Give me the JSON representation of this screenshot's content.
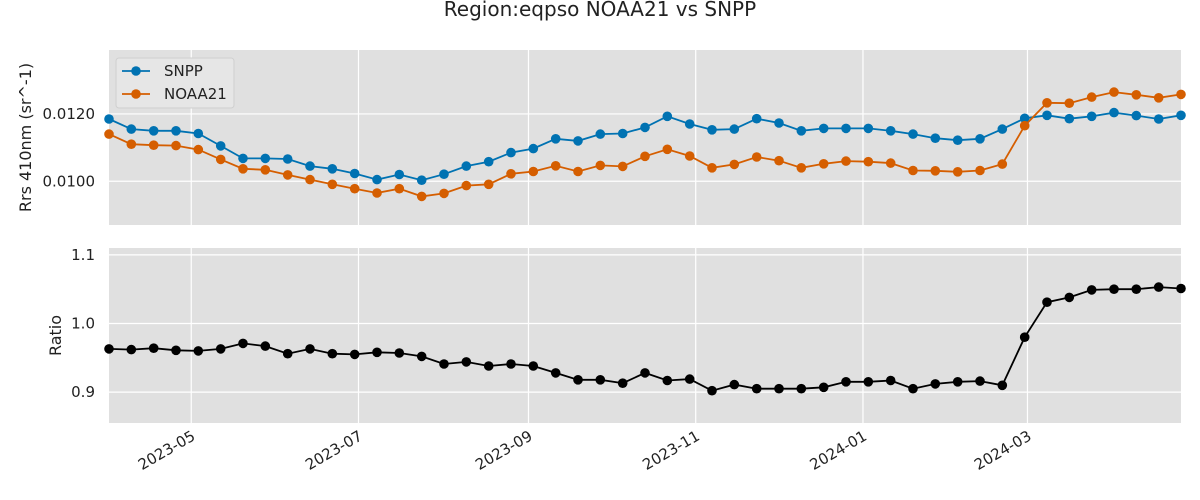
{
  "title": "Region:eqpso NOAA21 vs SNPP",
  "chart_data": [
    {
      "type": "line",
      "panel": "top",
      "ylabel": "Rrs 410nm (sr^-1)",
      "ylim": [
        0.0087,
        0.0139
      ],
      "yticks": [
        0.01,
        0.012
      ],
      "ytick_labels": [
        "0.0100",
        "0.0120"
      ],
      "grid": true,
      "legend": "top-left",
      "series": [
        {
          "name": "SNPP",
          "color": "#0072B2",
          "values": [
            0.01185,
            0.01155,
            0.0115,
            0.0115,
            0.01142,
            0.01105,
            0.01068,
            0.01068,
            0.01066,
            0.01045,
            0.01037,
            0.01023,
            0.01005,
            0.0102,
            0.01003,
            0.01021,
            0.01045,
            0.01058,
            0.01085,
            0.01097,
            0.01126,
            0.0112,
            0.0114,
            0.01142,
            0.0116,
            0.01193,
            0.0117,
            0.01153,
            0.01155,
            0.01186,
            0.01173,
            0.0115,
            0.01157,
            0.01157,
            0.01157,
            0.0115,
            0.0114,
            0.01128,
            0.01122,
            0.01126,
            0.01155,
            0.01187,
            0.01196,
            0.01186,
            0.01193,
            0.01204,
            0.01195,
            0.01185,
            0.01196
          ]
        },
        {
          "name": "NOAA21",
          "color": "#D55E00",
          "values": [
            0.0114,
            0.0111,
            0.01107,
            0.01106,
            0.01094,
            0.01065,
            0.01037,
            0.01034,
            0.01019,
            0.01005,
            0.00991,
            0.00978,
            0.00965,
            0.00978,
            0.00955,
            0.00964,
            0.00987,
            0.00991,
            0.01022,
            0.01029,
            0.01046,
            0.01029,
            0.01047,
            0.01044,
            0.01074,
            0.01095,
            0.01075,
            0.0104,
            0.0105,
            0.01072,
            0.01061,
            0.0104,
            0.01052,
            0.0106,
            0.01058,
            0.01054,
            0.01032,
            0.01031,
            0.01028,
            0.01032,
            0.01051,
            0.01165,
            0.01233,
            0.01232,
            0.0125,
            0.01265,
            0.01257,
            0.01248,
            0.01258
          ]
        }
      ]
    },
    {
      "type": "line",
      "panel": "bottom",
      "xlabel": "",
      "ylabel": "Ratio",
      "ylim": [
        0.855,
        1.11
      ],
      "yticks": [
        0.9,
        1.0,
        1.1
      ],
      "ytick_labels": [
        "0.9",
        "1.0",
        "1.1"
      ],
      "grid": true,
      "series": [
        {
          "name": "",
          "color": "#000000",
          "values": [
            0.963,
            0.962,
            0.964,
            0.961,
            0.96,
            0.963,
            0.971,
            0.967,
            0.956,
            0.963,
            0.956,
            0.955,
            0.958,
            0.957,
            0.952,
            0.941,
            0.944,
            0.938,
            0.941,
            0.938,
            0.928,
            0.918,
            0.918,
            0.913,
            0.928,
            0.917,
            0.919,
            0.902,
            0.911,
            0.905,
            0.905,
            0.905,
            0.907,
            0.915,
            0.915,
            0.917,
            0.905,
            0.912,
            0.915,
            0.916,
            0.91,
            0.98,
            1.031,
            1.038,
            1.049,
            1.05,
            1.05,
            1.053,
            1.051
          ]
        }
      ]
    }
  ],
  "x_axis": {
    "ticks": [
      "2023-05",
      "2023-07",
      "2023-09",
      "2023-11",
      "2024-01",
      "2024-03"
    ]
  }
}
